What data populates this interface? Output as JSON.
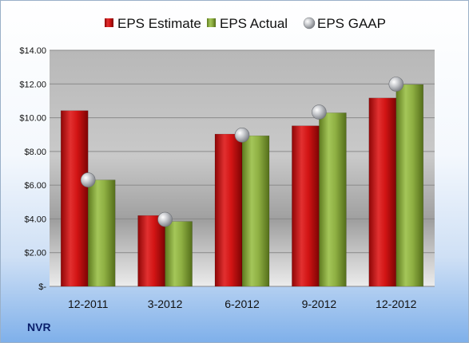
{
  "ticker": "NVR",
  "chart_data": {
    "type": "bar",
    "categories": [
      "12-2011",
      "3-2012",
      "6-2012",
      "9-2012",
      "12-2012"
    ],
    "series": [
      {
        "name": "EPS Estimate",
        "kind": "bar",
        "color": "#cc1111",
        "values": [
          10.42,
          4.2,
          9.03,
          9.52,
          11.17
        ]
      },
      {
        "name": "EPS Actual",
        "kind": "bar",
        "color": "#8aab3a",
        "values": [
          6.31,
          3.85,
          8.93,
          10.29,
          11.97
        ]
      },
      {
        "name": "EPS GAAP",
        "kind": "marker",
        "color": "#b9bcc2",
        "values": [
          6.31,
          3.97,
          8.97,
          10.33,
          11.99
        ]
      }
    ],
    "ylim": [
      0,
      14
    ],
    "yticks": [
      0,
      2,
      4,
      6,
      8,
      10,
      12,
      14
    ],
    "ytick_labels": [
      "$-",
      "$2.00",
      "$4.00",
      "$6.00",
      "$8.00",
      "$10.00",
      "$12.00",
      "$14.00"
    ],
    "title": "",
    "xlabel": "",
    "ylabel": "",
    "legend_position": "top",
    "grid": true
  }
}
